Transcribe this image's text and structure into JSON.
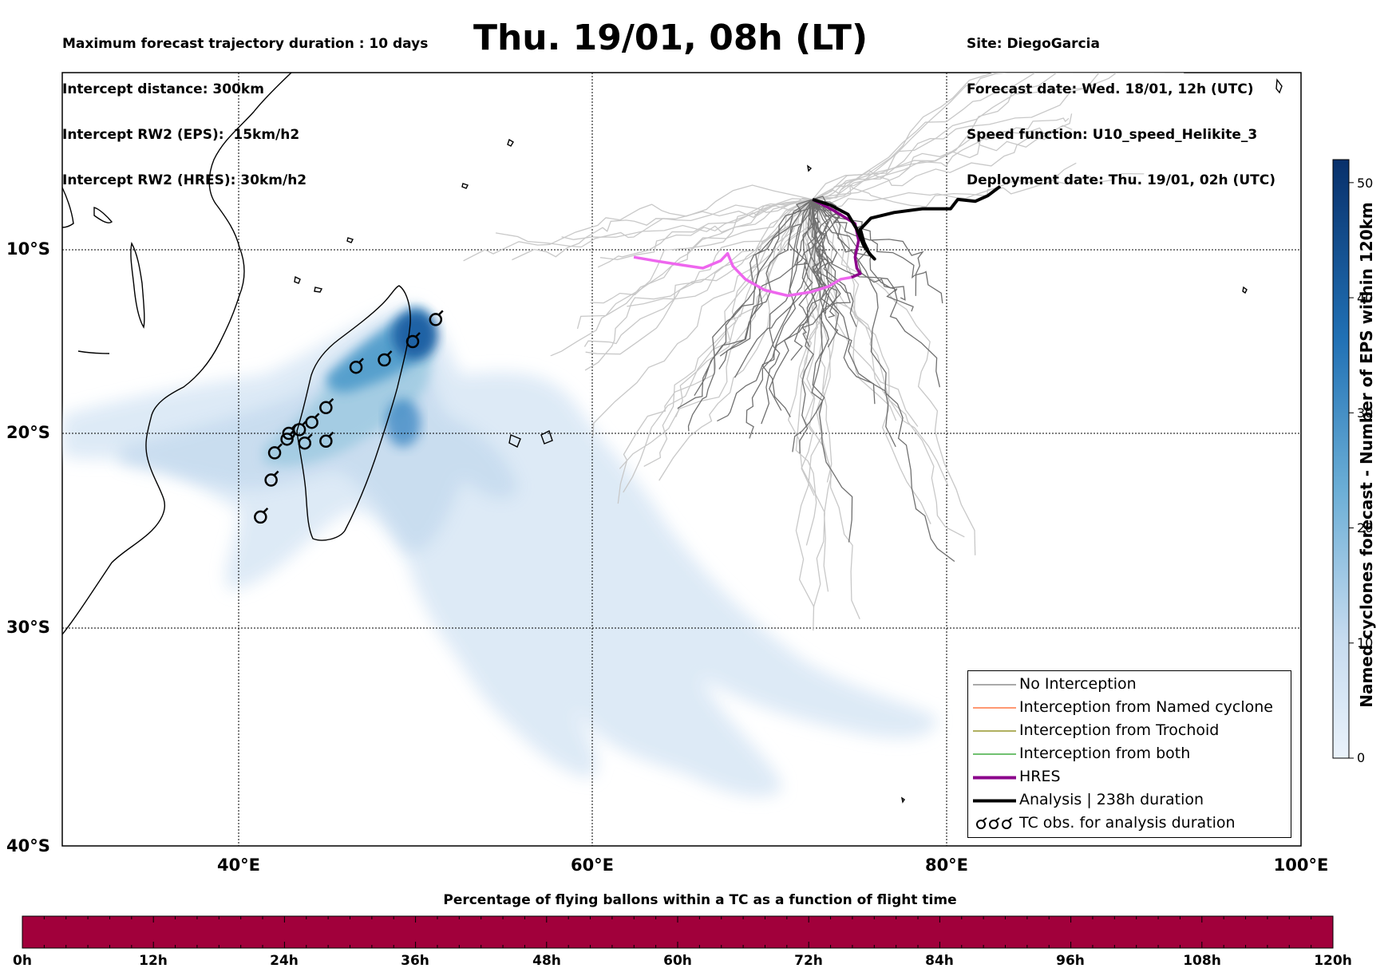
{
  "header_left": [
    "Maximum forecast trajectory duration : 10 days",
    "Intercept distance: 300km",
    "Intercept RW2 (EPS):  15km/h2",
    "Intercept RW2 (HRES): 30km/h2"
  ],
  "header_right": [
    "Site: DiegoGarcia",
    "Forecast date: Wed. 18/01, 12h (UTC)",
    "Speed function: U10_speed_Helikite_3",
    "Deployment date: Thu. 19/01, 02h (UTC)"
  ],
  "title": "Thu. 19/01, 08h (LT)",
  "map": {
    "lat_labels": [
      "10°S",
      "20°S",
      "30°S",
      "40°S"
    ],
    "lon_labels": [
      "40°E",
      "60°E",
      "80°E",
      "100°E"
    ],
    "extent": {
      "lon_min": 30,
      "lon_max": 100,
      "lat_min": -40,
      "lat_max": -0.5
    },
    "gridlines": "dotted",
    "release_site": {
      "lon": 72.4,
      "lat": -7.3
    },
    "hres_track": [
      [
        72.4,
        -7.3
      ],
      [
        73.6,
        -7.9
      ],
      [
        74.8,
        -8.6
      ],
      [
        75.0,
        -9.5
      ],
      [
        74.8,
        -10.4
      ],
      [
        74.9,
        -11.0
      ],
      [
        75.1,
        -11.3
      ],
      [
        74.6,
        -11.5
      ],
      [
        74.0,
        -11.6
      ],
      [
        73.3,
        -12.0
      ],
      [
        72.3,
        -12.3
      ],
      [
        71.0,
        -12.5
      ],
      [
        69.7,
        -12.2
      ],
      [
        68.6,
        -11.6
      ],
      [
        67.9,
        -10.9
      ],
      [
        67.6,
        -10.2
      ],
      [
        67.2,
        -10.6
      ],
      [
        66.2,
        -11.0
      ],
      [
        64.8,
        -10.8
      ],
      [
        63.5,
        -10.6
      ],
      [
        62.3,
        -10.4
      ]
    ],
    "analysis_track": [
      [
        72.4,
        -7.3
      ],
      [
        73.4,
        -7.6
      ],
      [
        74.4,
        -8.1
      ],
      [
        74.9,
        -8.9
      ],
      [
        75.3,
        -9.8
      ],
      [
        75.7,
        -10.3
      ],
      [
        75.9,
        -10.5
      ],
      [
        75.6,
        -10.2
      ],
      [
        75.3,
        -9.6
      ],
      [
        75.1,
        -8.9
      ],
      [
        75.7,
        -8.3
      ],
      [
        77.0,
        -8.0
      ],
      [
        78.6,
        -7.8
      ],
      [
        80.2,
        -7.8
      ],
      [
        80.6,
        -7.3
      ],
      [
        81.6,
        -7.4
      ],
      [
        82.3,
        -7.1
      ],
      [
        83.0,
        -6.6
      ]
    ],
    "tc_obs": [
      [
        51.1,
        -13.8
      ],
      [
        49.8,
        -15.0
      ],
      [
        48.2,
        -16.0
      ],
      [
        46.6,
        -16.4
      ],
      [
        44.9,
        -18.6
      ],
      [
        44.1,
        -19.4
      ],
      [
        43.4,
        -19.8
      ],
      [
        42.8,
        -20.0
      ],
      [
        42.7,
        -20.3
      ],
      [
        43.7,
        -20.5
      ],
      [
        44.9,
        -20.4
      ],
      [
        42.0,
        -21.0
      ],
      [
        41.8,
        -22.4
      ],
      [
        41.2,
        -24.3
      ]
    ]
  },
  "legend": {
    "items": [
      {
        "label": "No Interception",
        "color": "#777777",
        "style": "thin"
      },
      {
        "label": "Interception from Named cyclone",
        "color": "#ff5a1f",
        "style": "thin"
      },
      {
        "label": "Interception from Trochoid",
        "color": "#808000",
        "style": "thin"
      },
      {
        "label": "Interception from both",
        "color": "#1a9a1a",
        "style": "thin"
      },
      {
        "label": "HRES",
        "color": "#8b008b",
        "style": "thick"
      },
      {
        "label": "Analysis | 238h duration",
        "color": "#000000",
        "style": "thick"
      },
      {
        "label": "TC obs. for analysis duration",
        "color": "#000000",
        "style": "tc-icons"
      }
    ]
  },
  "colorbar_right": {
    "title": "Named cyclones forecast - Number of EPS within 120km",
    "ticks": [
      "0",
      "10",
      "20",
      "30",
      "40",
      "50"
    ],
    "min": 0,
    "max": 52,
    "colors": [
      "#eaf2fb",
      "#08306b"
    ]
  },
  "colorbar_bottom": {
    "title": "Percentage of flying ballons within a TC as a function of flight time",
    "ticks": [
      "0h",
      "12h",
      "24h",
      "36h",
      "48h",
      "60h",
      "72h",
      "84h",
      "96h",
      "108h",
      "120h"
    ],
    "fill_color": "#a1003b"
  }
}
